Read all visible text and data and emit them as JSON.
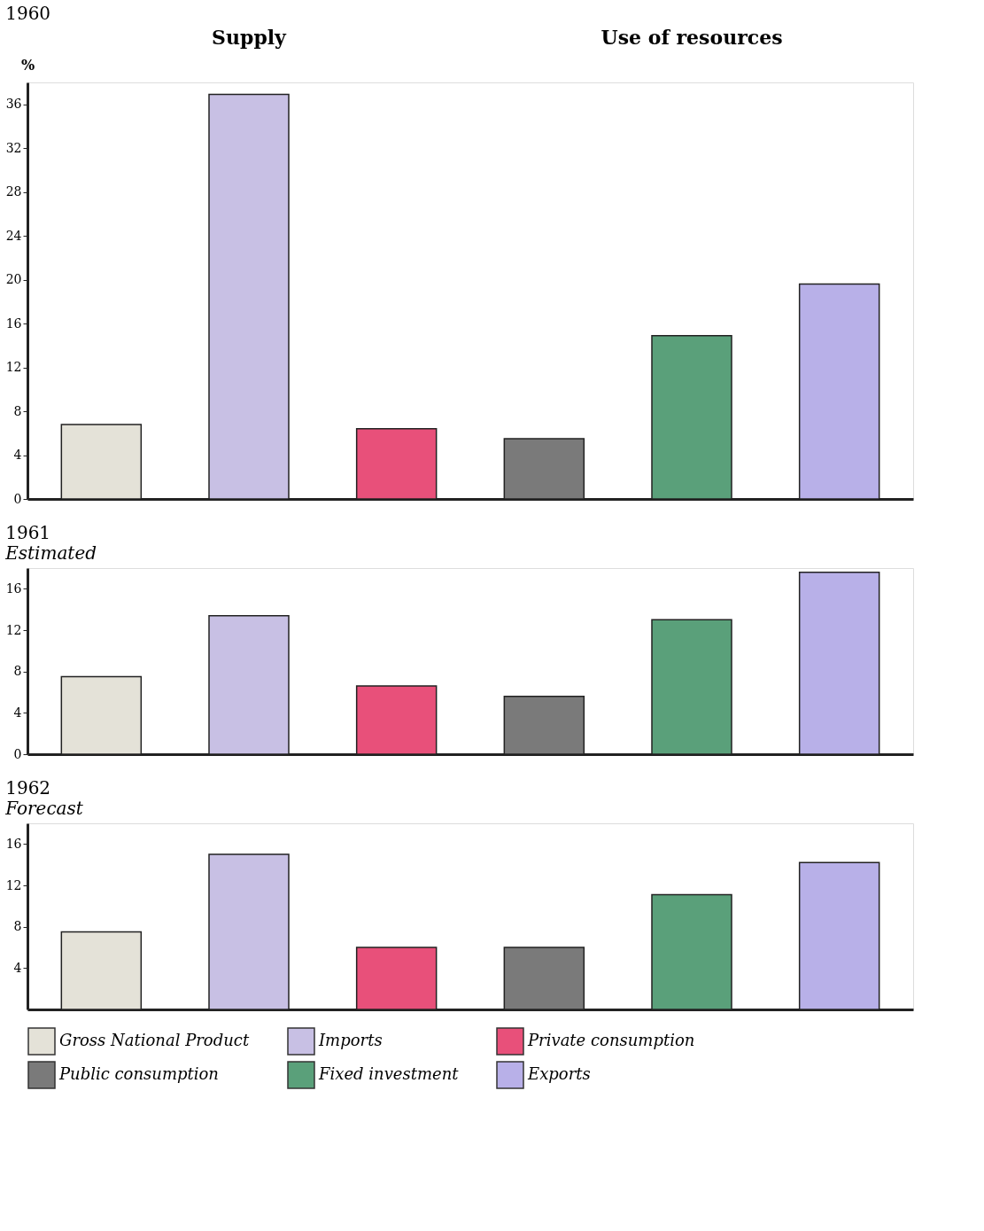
{
  "chart_data": [
    {
      "type": "bar",
      "title": "1960",
      "annotations": [
        "Supply",
        "Use of resources"
      ],
      "ylabel": "%",
      "categories": [
        null,
        null,
        null,
        null,
        null,
        null
      ],
      "series": [
        {
          "name": "Gross National Product",
          "color": "#e4e2d8",
          "values": [
            6.8,
            null,
            null,
            null,
            null,
            null
          ]
        },
        {
          "name": "Imports",
          "color": "#c8c0e4",
          "values": [
            null,
            36.9,
            null,
            null,
            null,
            null
          ]
        },
        {
          "name": "Private consumption",
          "color": "#e8507a",
          "values": [
            null,
            null,
            6.4,
            null,
            null,
            null
          ]
        },
        {
          "name": "Public consumption",
          "color": "#7a7a7a",
          "values": [
            null,
            null,
            null,
            5.5,
            null,
            null
          ]
        },
        {
          "name": "Fixed investment",
          "color": "#5aa07a",
          "values": [
            null,
            null,
            null,
            null,
            14.9,
            null
          ]
        },
        {
          "name": "Exports",
          "color": "#b8b0e8",
          "values": [
            null,
            null,
            null,
            null,
            null,
            19.6
          ]
        }
      ],
      "ylim": [
        0,
        38
      ],
      "yticks": [
        0,
        4,
        8,
        12,
        16,
        20,
        24,
        28,
        32,
        36
      ],
      "tick_labels": "y",
      "grid": false,
      "legend": "bottom"
    },
    {
      "type": "bar",
      "title": "1961",
      "subtitle": "Estimated",
      "categories": [
        null,
        null,
        null,
        null,
        null,
        null
      ],
      "series": [
        {
          "name": "Gross National Product",
          "color": "#e4e2d8",
          "values": [
            7.5,
            null,
            null,
            null,
            null,
            null
          ]
        },
        {
          "name": "Imports",
          "color": "#c8c0e4",
          "values": [
            null,
            13.4,
            null,
            null,
            null,
            null
          ]
        },
        {
          "name": "Private consumption",
          "color": "#e8507a",
          "values": [
            null,
            null,
            6.6,
            null,
            null,
            null
          ]
        },
        {
          "name": "Public consumption",
          "color": "#7a7a7a",
          "values": [
            null,
            null,
            null,
            5.6,
            null,
            null
          ]
        },
        {
          "name": "Fixed investment",
          "color": "#5aa07a",
          "values": [
            null,
            null,
            null,
            null,
            13.0,
            null
          ]
        },
        {
          "name": "Exports",
          "color": "#b8b0e8",
          "values": [
            null,
            null,
            null,
            null,
            null,
            17.6
          ]
        }
      ],
      "ylim": [
        0,
        18
      ],
      "yticks": [
        0,
        4,
        8,
        12,
        16
      ],
      "tick_labels": "y",
      "grid": false,
      "legend": "bottom"
    },
    {
      "type": "bar",
      "title": "1962",
      "subtitle": "Forecast",
      "categories": [
        null,
        null,
        null,
        null,
        null,
        null
      ],
      "series": [
        {
          "name": "Gross National Product",
          "color": "#e4e2d8",
          "values": [
            7.5,
            null,
            null,
            null,
            null,
            null
          ]
        },
        {
          "name": "Imports",
          "color": "#c8c0e4",
          "values": [
            null,
            15.0,
            null,
            null,
            null,
            null
          ]
        },
        {
          "name": "Private consumption",
          "color": "#e8507a",
          "values": [
            null,
            null,
            6.0,
            null,
            null,
            null
          ]
        },
        {
          "name": "Public consumption",
          "color": "#7a7a7a",
          "values": [
            null,
            null,
            null,
            6.0,
            null,
            null
          ]
        },
        {
          "name": "Fixed investment",
          "color": "#5aa07a",
          "values": [
            null,
            null,
            null,
            null,
            11.1,
            null
          ]
        },
        {
          "name": "Exports",
          "color": "#b8b0e8",
          "values": [
            null,
            null,
            null,
            null,
            null,
            14.2
          ]
        }
      ],
      "ylim": [
        0,
        18
      ],
      "yticks": [
        4,
        8,
        12,
        16
      ],
      "tick_labels": "y",
      "grid": false,
      "legend": "bottom"
    }
  ]
}
